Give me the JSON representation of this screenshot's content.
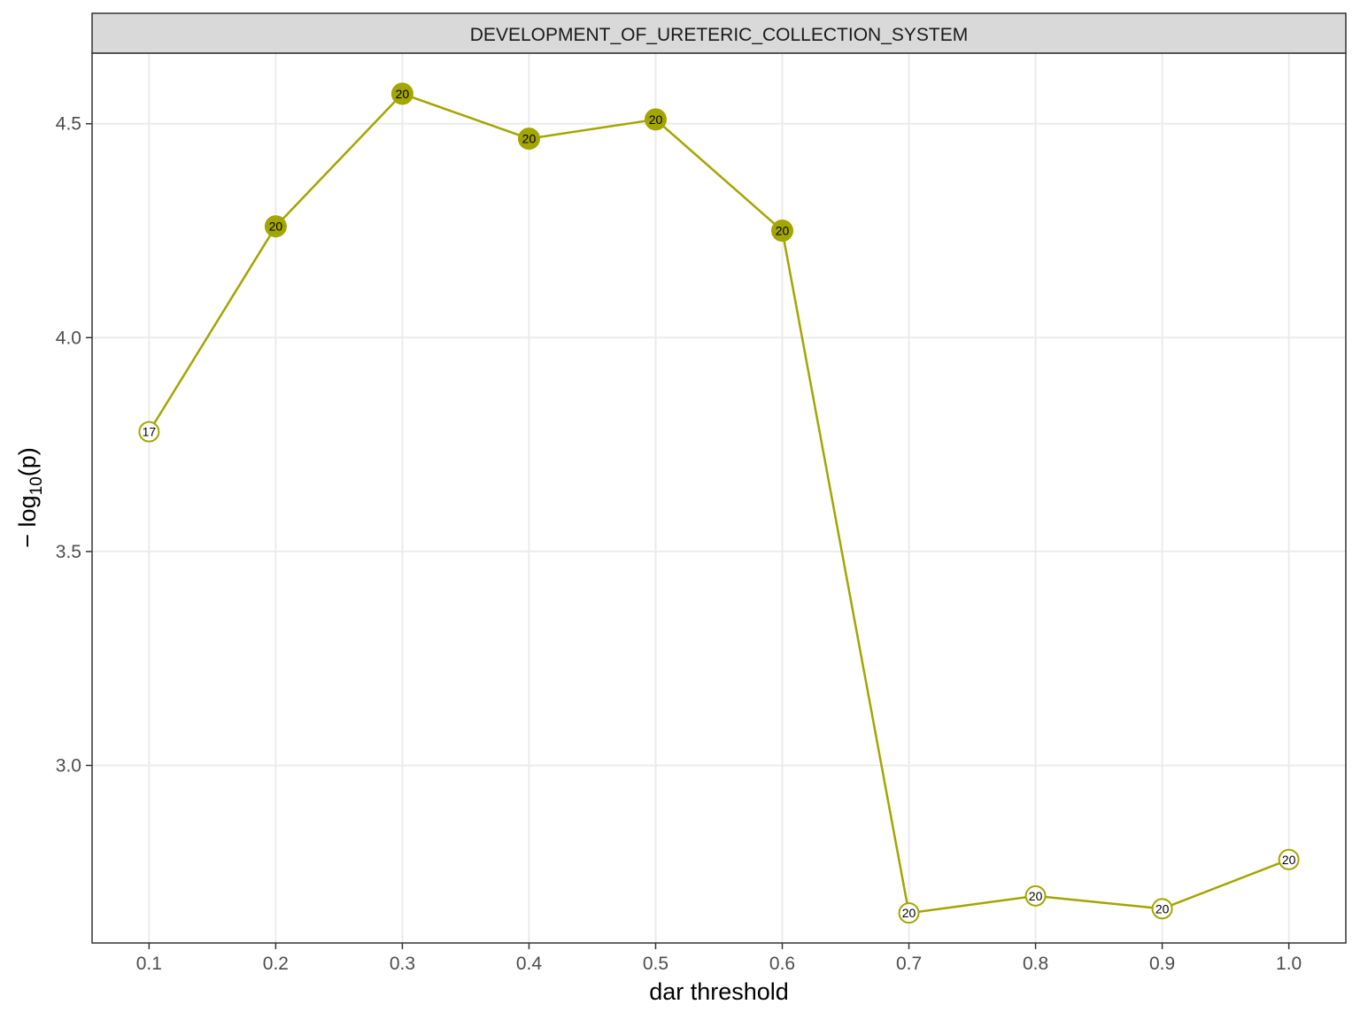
{
  "chart_data": {
    "type": "line",
    "facet_title": "DEVELOPMENT_OF_URETERIC_COLLECTION_SYSTEM",
    "xlabel": "dar threshold",
    "ylabel": "− log",
    "ylabel_sub": "10",
    "ylabel_suffix": "(p)",
    "x_ticks": [
      "0.1",
      "0.2",
      "0.3",
      "0.4",
      "0.5",
      "0.6",
      "0.7",
      "0.8",
      "0.9",
      "1.0"
    ],
    "y_ticks": [
      "3.0",
      "3.5",
      "4.0",
      "4.5"
    ],
    "xlim": [
      0.055,
      1.045
    ],
    "ylim": [
      2.585,
      4.665
    ],
    "grid": true,
    "legend": "none",
    "color": "#a3a500",
    "series": [
      {
        "x": [
          0.1,
          0.2,
          0.3,
          0.4,
          0.5,
          0.6,
          0.7,
          0.8,
          0.9,
          1.0
        ],
        "y": [
          3.78,
          4.26,
          4.57,
          4.465,
          4.51,
          4.25,
          2.655,
          2.695,
          2.665,
          2.78
        ],
        "labels": [
          "17",
          "20",
          "20",
          "20",
          "20",
          "20",
          "20",
          "20",
          "20",
          "20"
        ],
        "filled": [
          false,
          true,
          true,
          true,
          true,
          true,
          false,
          false,
          false,
          false
        ]
      }
    ]
  }
}
